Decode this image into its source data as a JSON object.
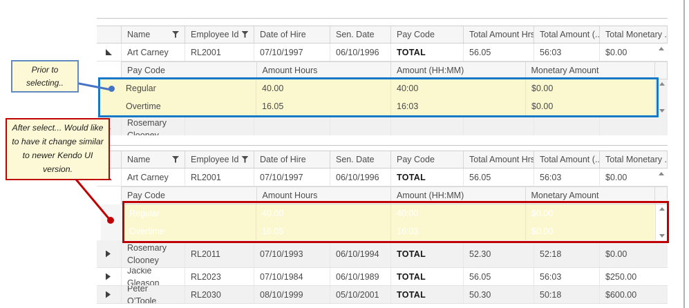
{
  "grid": {
    "columns": [
      {
        "label": "",
        "filter": false
      },
      {
        "label": "Name",
        "filter": true
      },
      {
        "label": "Employee Id",
        "filter": true
      },
      {
        "label": "Date of Hire",
        "filter": false
      },
      {
        "label": "Sen. Date",
        "filter": false
      },
      {
        "label": "Pay Code",
        "filter": false
      },
      {
        "label": "Total Amount Hrs",
        "filter": false
      },
      {
        "label": "Total Amount (...",
        "filter": false
      },
      {
        "label": "Total Monetary ...",
        "filter": false
      }
    ],
    "detail_columns": [
      "Pay Code",
      "Amount Hours",
      "Amount (HH:MM)",
      "Monetary Amount"
    ]
  },
  "grid_before": {
    "rows": [
      {
        "type": "master",
        "expanded": true,
        "cells": [
          "Art Carney",
          "RL2001",
          "07/10/1997",
          "06/10/1996",
          "TOTAL",
          "56.05",
          "56:03",
          "$0.00"
        ]
      },
      {
        "type": "detail",
        "selected": false,
        "rows": [
          [
            "Regular",
            "40.00",
            "40:00",
            "$0.00"
          ],
          [
            "Overtime",
            "16.05",
            "16:03",
            "$0.00"
          ]
        ]
      },
      {
        "type": "master",
        "expanded": false,
        "tall": true,
        "clipped": true,
        "cells": [
          "Rosemary Clooney",
          "",
          "",
          "",
          "",
          "",
          "",
          ""
        ]
      }
    ]
  },
  "grid_after": {
    "rows": [
      {
        "type": "master",
        "expanded": true,
        "cells": [
          "Art Carney",
          "RL2001",
          "07/10/1997",
          "06/10/1996",
          "TOTAL",
          "56.05",
          "56:03",
          "$0.00"
        ]
      },
      {
        "type": "detail",
        "selected": true,
        "rows": [
          [
            "Regular",
            "40.00",
            "40:00",
            "$0.00"
          ],
          [
            "Overtime",
            "16.05",
            "16:03",
            "$0.00"
          ]
        ]
      },
      {
        "type": "master",
        "expanded": false,
        "tall": true,
        "cells": [
          "Rosemary Clooney",
          "RL2011",
          "07/10/1993",
          "06/10/1994",
          "TOTAL",
          "52.30",
          "52:18",
          "$0.00"
        ]
      },
      {
        "type": "master",
        "expanded": false,
        "cells": [
          "Jackie Gleason",
          "RL2023",
          "07/10/1984",
          "06/10/1989",
          "TOTAL",
          "56.05",
          "56:03",
          "$250.00"
        ]
      },
      {
        "type": "master",
        "expanded": false,
        "cells": [
          "Peter O’Toole",
          "RL2030",
          "08/10/1999",
          "05/10/2001",
          "TOTAL",
          "50.30",
          "50:18",
          "$600.00"
        ]
      }
    ]
  },
  "annotations": {
    "before_label": {
      "lines": [
        "Prior to",
        "selecting.."
      ]
    },
    "after_label": {
      "lines": [
        "After select... Would like",
        "to have it change similar",
        "to newer Kendo UI",
        "version."
      ]
    },
    "colors": {
      "highlight_fill": "#fbf8cf",
      "callout_fill": "#fdf9d6",
      "before_accent": "#4472c4",
      "before_box": "#1878c8",
      "after_accent": "#c00000",
      "selected_text": "#ffffff"
    }
  },
  "icons": {
    "filter": "funnel",
    "row_expanded": "triangle-lower-left",
    "row_collapsed": "triangle-right",
    "scroll_up": "triangle-up",
    "scroll_down": "triangle-down"
  }
}
